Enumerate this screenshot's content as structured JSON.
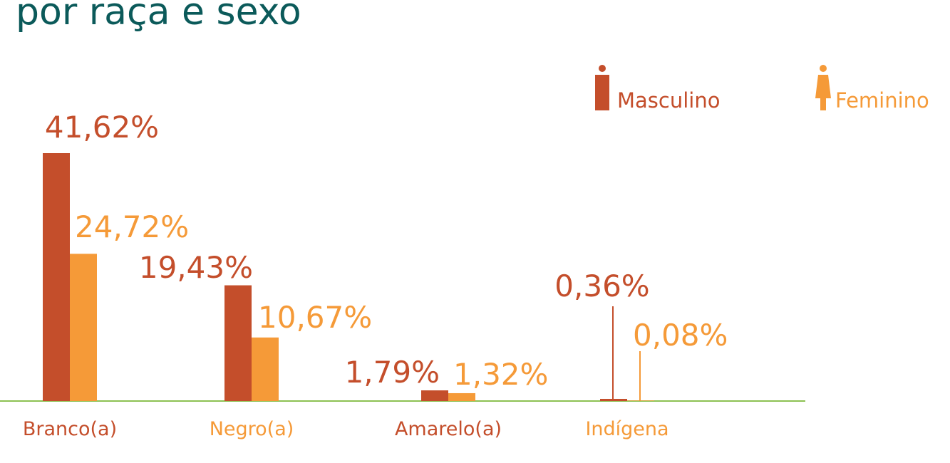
{
  "chart_data": {
    "type": "bar",
    "title": "por raça e sexo",
    "categories": [
      "Branco(a)",
      "Negro(a)",
      "Amarelo(a)",
      "Indígena"
    ],
    "category_colors": [
      "#c44e2b",
      "#f59a38",
      "#c44e2b",
      "#f59a38"
    ],
    "series": [
      {
        "name": "Masculino",
        "color": "#c44e2b",
        "values": [
          41.62,
          19.43,
          1.79,
          0.36
        ],
        "value_labels": [
          "41,62%",
          "19,43%",
          "1,79%",
          "0,36%"
        ]
      },
      {
        "name": "Feminino",
        "color": "#f59a38",
        "values": [
          24.72,
          10.67,
          1.32,
          0.08
        ],
        "value_labels": [
          "24,72%",
          "10,67%",
          "1,32%",
          "0,08%"
        ]
      }
    ],
    "baseline_color": "#8cc152"
  }
}
